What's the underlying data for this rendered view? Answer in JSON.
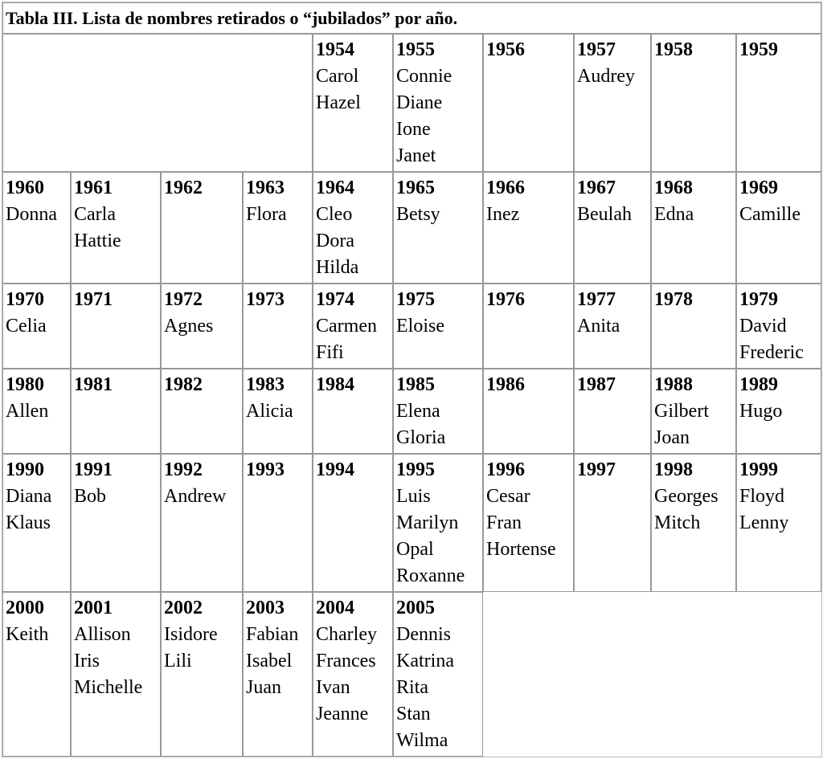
{
  "table": {
    "title": "Tabla III. Lista de nombres retirados o “jubilados” por año.",
    "rows": [
      {
        "cells": [
          {
            "year": "1954",
            "names": [
              "Carol",
              "Hazel"
            ]
          },
          {
            "year": "1955",
            "names": [
              "Connie",
              "Diane",
              "Ione",
              "Janet"
            ]
          },
          {
            "year": "1956",
            "names": []
          },
          {
            "year": "1957",
            "names": [
              "Audrey"
            ]
          },
          {
            "year": "1958",
            "names": []
          },
          {
            "year": "1959",
            "names": []
          }
        ]
      },
      {
        "cells": [
          {
            "year": "1960",
            "names": [
              "Donna"
            ]
          },
          {
            "year": "1961",
            "names": [
              "Carla",
              "Hattie"
            ]
          },
          {
            "year": "1962",
            "names": []
          },
          {
            "year": "1963",
            "names": [
              "Flora"
            ]
          },
          {
            "year": "1964",
            "names": [
              "Cleo",
              "Dora",
              "Hilda"
            ]
          },
          {
            "year": "1965",
            "names": [
              "Betsy"
            ]
          },
          {
            "year": "1966",
            "names": [
              "Inez"
            ]
          },
          {
            "year": "1967",
            "names": [
              "Beulah"
            ]
          },
          {
            "year": "1968",
            "names": [
              "Edna"
            ]
          },
          {
            "year": "1969",
            "names": [
              "Camille"
            ]
          }
        ]
      },
      {
        "cells": [
          {
            "year": "1970",
            "names": [
              "Celia"
            ]
          },
          {
            "year": "1971",
            "names": []
          },
          {
            "year": "1972",
            "names": [
              "Agnes"
            ]
          },
          {
            "year": "1973",
            "names": []
          },
          {
            "year": "1974",
            "names": [
              "Carmen",
              "Fifi"
            ]
          },
          {
            "year": "1975",
            "names": [
              "Eloise"
            ]
          },
          {
            "year": "1976",
            "names": []
          },
          {
            "year": "1977",
            "names": [
              "Anita"
            ]
          },
          {
            "year": "1978",
            "names": []
          },
          {
            "year": "1979",
            "names": [
              "David",
              "Frederic"
            ]
          }
        ]
      },
      {
        "cells": [
          {
            "year": "1980",
            "names": [
              "Allen"
            ]
          },
          {
            "year": "1981",
            "names": []
          },
          {
            "year": "1982",
            "names": []
          },
          {
            "year": "1983",
            "names": [
              "Alicia"
            ]
          },
          {
            "year": "1984",
            "names": []
          },
          {
            "year": "1985",
            "names": [
              "Elena",
              "Gloria"
            ]
          },
          {
            "year": "1986",
            "names": []
          },
          {
            "year": "1987",
            "names": []
          },
          {
            "year": "1988",
            "names": [
              "Gilbert",
              "Joan"
            ]
          },
          {
            "year": "1989",
            "names": [
              "Hugo"
            ]
          }
        ]
      },
      {
        "cells": [
          {
            "year": "1990",
            "names": [
              "Diana",
              "Klaus"
            ]
          },
          {
            "year": "1991",
            "names": [
              "Bob"
            ]
          },
          {
            "year": "1992",
            "names": [
              "Andrew"
            ]
          },
          {
            "year": "1993",
            "names": []
          },
          {
            "year": "1994",
            "names": []
          },
          {
            "year": "1995",
            "names": [
              "Luis",
              "Marilyn",
              "Opal",
              "Roxanne"
            ]
          },
          {
            "year": "1996",
            "names": [
              "Cesar",
              "Fran",
              "Hortense"
            ]
          },
          {
            "year": "1997",
            "names": []
          },
          {
            "year": "1998",
            "names": [
              "Georges",
              "Mitch"
            ]
          },
          {
            "year": "1999",
            "names": [
              "Floyd",
              "Lenny"
            ]
          }
        ]
      },
      {
        "cells": [
          {
            "year": "2000",
            "names": [
              "Keith"
            ]
          },
          {
            "year": "2001",
            "names": [
              "Allison",
              "Iris",
              "Michelle"
            ]
          },
          {
            "year": "2002",
            "names": [
              "Isidore",
              "Lili"
            ]
          },
          {
            "year": "2003",
            "names": [
              "Fabian",
              "Isabel",
              "Juan"
            ]
          },
          {
            "year": "2004",
            "names": [
              "Charley",
              "Frances",
              "Ivan",
              "Jeanne"
            ]
          },
          {
            "year": "2005",
            "names": [
              "Dennis",
              "Katrina",
              "Rita",
              "Stan",
              "Wilma"
            ]
          }
        ]
      }
    ]
  }
}
